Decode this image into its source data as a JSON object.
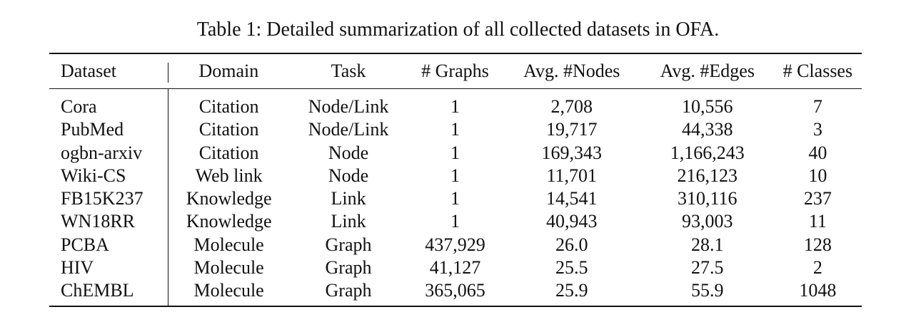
{
  "caption": "Table 1: Detailed summarization of all collected datasets in OFA.",
  "table": {
    "headers": [
      "Dataset",
      "Domain",
      "Task",
      "# Graphs",
      "Avg. #Nodes",
      "Avg. #Edges",
      "# Classes"
    ],
    "rows": [
      [
        "Cora",
        "Citation",
        "Node/Link",
        "1",
        "2,708",
        "10,556",
        "7"
      ],
      [
        "PubMed",
        "Citation",
        "Node/Link",
        "1",
        "19,717",
        "44,338",
        "3"
      ],
      [
        "ogbn-arxiv",
        "Citation",
        "Node",
        "1",
        "169,343",
        "1,166,243",
        "40"
      ],
      [
        "Wiki-CS",
        "Web link",
        "Node",
        "1",
        "11,701",
        "216,123",
        "10"
      ],
      [
        "FB15K237",
        "Knowledge",
        "Link",
        "1",
        "14,541",
        "310,116",
        "237"
      ],
      [
        "WN18RR",
        "Knowledge",
        "Link",
        "1",
        "40,943",
        "93,003",
        "11"
      ],
      [
        "PCBA",
        "Molecule",
        "Graph",
        "437,929",
        "26.0",
        "28.1",
        "128"
      ],
      [
        "HIV",
        "Molecule",
        "Graph",
        "41,127",
        "25.5",
        "27.5",
        "2"
      ],
      [
        "ChEMBL",
        "Molecule",
        "Graph",
        "365,065",
        "25.9",
        "55.9",
        "1048"
      ]
    ]
  }
}
